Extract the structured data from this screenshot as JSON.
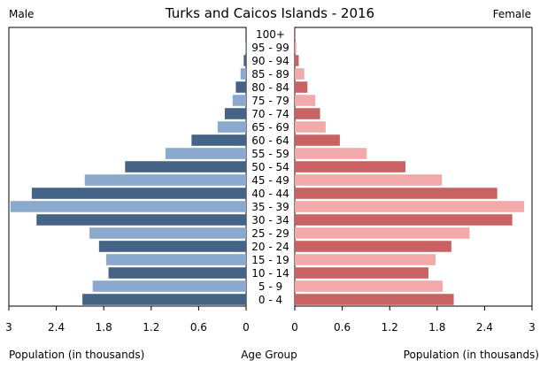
{
  "chart_data": {
    "type": "bar",
    "title": "Turks and Caicos Islands - 2016",
    "left_label": "Male",
    "right_label": "Female",
    "xlabel_left": "Population (in thousands)",
    "xlabel_center": "Age Group",
    "xlabel_right": "Population (in thousands)",
    "xlim": [
      0,
      3
    ],
    "ticks": [
      "0",
      "0.6",
      "1.2",
      "1.8",
      "2.4",
      "3"
    ],
    "tick_values": [
      0,
      0.6,
      1.2,
      1.8,
      2.4,
      3
    ],
    "categories": [
      "0 - 4",
      "5 - 9",
      "10 - 14",
      "15 - 19",
      "20 - 24",
      "25 - 29",
      "30 - 34",
      "35 - 39",
      "40 - 44",
      "45 - 49",
      "50 - 54",
      "55 - 59",
      "60 - 64",
      "65 - 69",
      "70 - 74",
      "75 - 79",
      "80 - 84",
      "85 - 89",
      "90 - 94",
      "95 - 99",
      "100+"
    ],
    "series": [
      {
        "name": "Male",
        "values": [
          2.07,
          1.94,
          1.74,
          1.77,
          1.86,
          1.98,
          2.65,
          2.98,
          2.71,
          2.04,
          1.53,
          1.02,
          0.69,
          0.36,
          0.27,
          0.17,
          0.13,
          0.07,
          0.03,
          0.01,
          0.005
        ]
      },
      {
        "name": "Female",
        "values": [
          2.01,
          1.87,
          1.69,
          1.78,
          1.98,
          2.21,
          2.75,
          2.9,
          2.56,
          1.86,
          1.4,
          0.91,
          0.57,
          0.39,
          0.32,
          0.26,
          0.16,
          0.12,
          0.05,
          0.02,
          0.005
        ]
      }
    ],
    "colors": {
      "male_dark": "#456385",
      "male_light": "#8aa9cc",
      "female_dark": "#c96363",
      "female_light": "#f2a9a9",
      "frame": "#000000"
    }
  }
}
